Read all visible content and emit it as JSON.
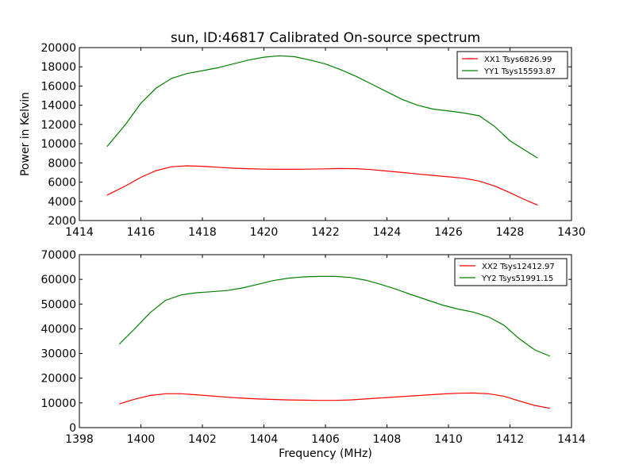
{
  "chart_data": [
    {
      "type": "line",
      "title": "sun, ID:46817 Calibrated On-source spectrum",
      "xlabel": "",
      "ylabel": "Power in Kelvin",
      "xlim": [
        1414,
        1430
      ],
      "ylim": [
        2000,
        20000
      ],
      "xticks": [
        "1414",
        "1416",
        "1418",
        "1420",
        "1422",
        "1424",
        "1426",
        "1428",
        "1430"
      ],
      "yticks": [
        "2000",
        "4000",
        "6000",
        "8000",
        "10000",
        "12000",
        "14000",
        "16000",
        "18000",
        "20000"
      ],
      "legend_position": "top-right",
      "series": [
        {
          "name": "XX1 Tsys6826.99",
          "color": "#ff0000",
          "x": [
            1414.9,
            1415.5,
            1416.0,
            1416.5,
            1417.0,
            1417.5,
            1418.0,
            1418.5,
            1419.0,
            1419.5,
            1420.0,
            1420.5,
            1421.0,
            1421.5,
            1422.0,
            1422.5,
            1423.0,
            1423.5,
            1424.0,
            1424.5,
            1425.0,
            1425.5,
            1426.0,
            1426.5,
            1427.0,
            1427.5,
            1428.0,
            1428.5,
            1428.9
          ],
          "y": [
            4650,
            5600,
            6500,
            7200,
            7600,
            7700,
            7650,
            7550,
            7450,
            7400,
            7350,
            7330,
            7330,
            7350,
            7380,
            7420,
            7400,
            7300,
            7150,
            7000,
            6850,
            6700,
            6550,
            6400,
            6100,
            5600,
            4900,
            4150,
            3600
          ]
        },
        {
          "name": "YY1 Tsys15593.87",
          "color": "#008000",
          "x": [
            1414.9,
            1415.5,
            1416.0,
            1416.5,
            1417.0,
            1417.5,
            1418.0,
            1418.5,
            1419.0,
            1419.5,
            1420.0,
            1420.5,
            1421.0,
            1421.5,
            1422.0,
            1422.5,
            1423.0,
            1423.5,
            1424.0,
            1424.5,
            1425.0,
            1425.5,
            1426.0,
            1426.5,
            1427.0,
            1427.5,
            1428.0,
            1428.5,
            1428.9
          ],
          "y": [
            9700,
            12000,
            14200,
            15800,
            16800,
            17300,
            17600,
            17900,
            18300,
            18700,
            19000,
            19150,
            19050,
            18700,
            18300,
            17700,
            17000,
            16200,
            15400,
            14600,
            14000,
            13600,
            13400,
            13200,
            12900,
            11800,
            10300,
            9300,
            8500
          ]
        }
      ]
    },
    {
      "type": "line",
      "title": "",
      "xlabel": "Frequency (MHz)",
      "ylabel": "",
      "xlim": [
        1398,
        1414
      ],
      "ylim": [
        0,
        70000
      ],
      "xticks": [
        "1398",
        "1400",
        "1402",
        "1404",
        "1406",
        "1408",
        "1410",
        "1412",
        "1414"
      ],
      "yticks": [
        "0",
        "10000",
        "20000",
        "30000",
        "40000",
        "50000",
        "60000",
        "70000"
      ],
      "legend_position": "top-right",
      "series": [
        {
          "name": "XX2 Tsys12412.97",
          "color": "#ff0000",
          "x": [
            1399.3,
            1399.8,
            1400.3,
            1400.8,
            1401.3,
            1401.8,
            1402.3,
            1402.8,
            1403.3,
            1403.8,
            1404.3,
            1404.8,
            1405.3,
            1405.8,
            1406.3,
            1406.8,
            1407.3,
            1407.8,
            1408.3,
            1408.8,
            1409.3,
            1409.8,
            1410.3,
            1410.8,
            1411.3,
            1411.8,
            1412.3,
            1412.8,
            1413.3
          ],
          "y": [
            9600,
            11500,
            13000,
            13700,
            13700,
            13300,
            12800,
            12300,
            11900,
            11600,
            11400,
            11200,
            11100,
            11000,
            11000,
            11200,
            11600,
            12000,
            12400,
            12800,
            13200,
            13600,
            13900,
            14000,
            13700,
            12700,
            10800,
            9000,
            7800
          ]
        },
        {
          "name": "YY2 Tsys51991.15",
          "color": "#008000",
          "x": [
            1399.3,
            1399.8,
            1400.3,
            1400.8,
            1401.3,
            1401.8,
            1402.3,
            1402.8,
            1403.3,
            1403.8,
            1404.3,
            1404.8,
            1405.3,
            1405.8,
            1406.3,
            1406.8,
            1407.3,
            1407.8,
            1408.3,
            1408.8,
            1409.3,
            1409.8,
            1410.3,
            1410.8,
            1411.3,
            1411.8,
            1412.3,
            1412.8,
            1413.3
          ],
          "y": [
            33800,
            40000,
            46500,
            51500,
            53700,
            54600,
            55000,
            55500,
            56500,
            58000,
            59500,
            60500,
            61000,
            61200,
            61200,
            60800,
            59700,
            58000,
            56000,
            53800,
            51700,
            49600,
            48000,
            46800,
            44800,
            41500,
            36000,
            31500,
            28900
          ]
        }
      ]
    }
  ]
}
